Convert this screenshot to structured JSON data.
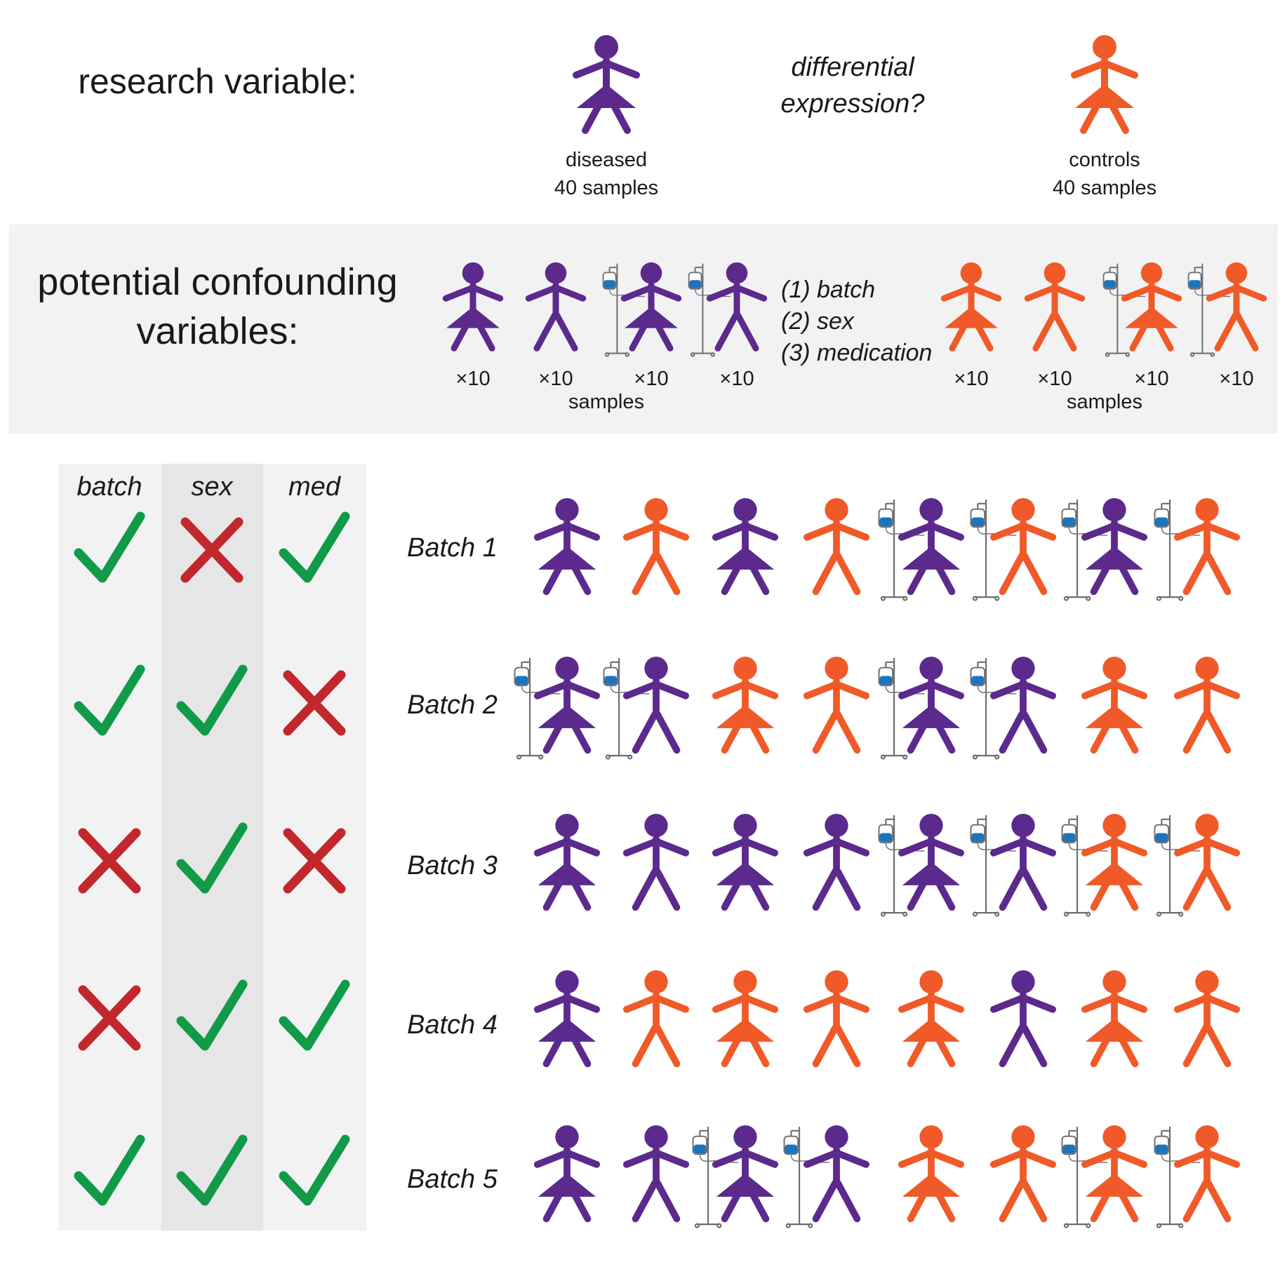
{
  "colors": {
    "diseased": "#5b2a8c",
    "control": "#f05a28",
    "check": "#119a48",
    "cross": "#c1272d",
    "iv_fluid": "#1c75bc",
    "iv_stand": "#6d6e71",
    "band_bg": "#f2f2f2",
    "col_bg": "#f2f2f2",
    "col_mid_bg": "#e6e6e6"
  },
  "research": {
    "title": "research variable:",
    "question_line1": "differential",
    "question_line2": "expression?",
    "diseased_label": "diseased",
    "diseased_count": "40 samples",
    "controls_label": "controls",
    "controls_count": "40 samples"
  },
  "confounding": {
    "title_line1": "potential confounding",
    "title_line2": "variables:",
    "vars": [
      "(1) batch",
      "(2) sex",
      "(3) medication"
    ],
    "mult_label": "×10",
    "samples_label": "samples",
    "diseased_groups": [
      {
        "sex": "F",
        "med": false
      },
      {
        "sex": "M",
        "med": false
      },
      {
        "sex": "F",
        "med": true
      },
      {
        "sex": "M",
        "med": true
      }
    ],
    "control_groups": [
      {
        "sex": "F",
        "med": false
      },
      {
        "sex": "M",
        "med": false
      },
      {
        "sex": "F",
        "med": true
      },
      {
        "sex": "M",
        "med": true
      }
    ]
  },
  "table": {
    "headers": [
      "batch",
      "sex",
      "med"
    ],
    "icon_names": {
      "check": "check-icon",
      "cross": "cross-icon"
    },
    "rows": [
      {
        "batch": "Batch 1",
        "balanced": [
          true,
          false,
          true
        ],
        "people": [
          {
            "g": "d",
            "sex": "F",
            "med": false
          },
          {
            "g": "c",
            "sex": "M",
            "med": false
          },
          {
            "g": "d",
            "sex": "F",
            "med": false
          },
          {
            "g": "c",
            "sex": "M",
            "med": false
          },
          {
            "g": "d",
            "sex": "F",
            "med": true
          },
          {
            "g": "c",
            "sex": "M",
            "med": true
          },
          {
            "g": "d",
            "sex": "F",
            "med": true
          },
          {
            "g": "c",
            "sex": "M",
            "med": true
          }
        ]
      },
      {
        "batch": "Batch 2",
        "balanced": [
          true,
          true,
          false
        ],
        "people": [
          {
            "g": "d",
            "sex": "F",
            "med": true
          },
          {
            "g": "d",
            "sex": "M",
            "med": true
          },
          {
            "g": "c",
            "sex": "F",
            "med": false
          },
          {
            "g": "c",
            "sex": "M",
            "med": false
          },
          {
            "g": "d",
            "sex": "F",
            "med": true
          },
          {
            "g": "d",
            "sex": "M",
            "med": true
          },
          {
            "g": "c",
            "sex": "F",
            "med": false
          },
          {
            "g": "c",
            "sex": "M",
            "med": false
          }
        ]
      },
      {
        "batch": "Batch 3",
        "balanced": [
          false,
          true,
          false
        ],
        "people": [
          {
            "g": "d",
            "sex": "F",
            "med": false
          },
          {
            "g": "d",
            "sex": "M",
            "med": false
          },
          {
            "g": "d",
            "sex": "F",
            "med": false
          },
          {
            "g": "d",
            "sex": "M",
            "med": false
          },
          {
            "g": "d",
            "sex": "F",
            "med": true
          },
          {
            "g": "d",
            "sex": "M",
            "med": true
          },
          {
            "g": "c",
            "sex": "F",
            "med": true
          },
          {
            "g": "c",
            "sex": "M",
            "med": true
          }
        ]
      },
      {
        "batch": "Batch 4",
        "balanced": [
          false,
          true,
          true
        ],
        "people": [
          {
            "g": "d",
            "sex": "F",
            "med": false
          },
          {
            "g": "c",
            "sex": "M",
            "med": false
          },
          {
            "g": "c",
            "sex": "F",
            "med": false
          },
          {
            "g": "c",
            "sex": "M",
            "med": false
          },
          {
            "g": "c",
            "sex": "F",
            "med": false
          },
          {
            "g": "d",
            "sex": "M",
            "med": false
          },
          {
            "g": "c",
            "sex": "F",
            "med": false
          },
          {
            "g": "c",
            "sex": "M",
            "med": false
          }
        ]
      },
      {
        "batch": "Batch 5",
        "balanced": [
          true,
          true,
          true
        ],
        "people": [
          {
            "g": "d",
            "sex": "F",
            "med": false
          },
          {
            "g": "d",
            "sex": "M",
            "med": false
          },
          {
            "g": "d",
            "sex": "F",
            "med": true
          },
          {
            "g": "d",
            "sex": "M",
            "med": true
          },
          {
            "g": "c",
            "sex": "F",
            "med": false
          },
          {
            "g": "c",
            "sex": "M",
            "med": false
          },
          {
            "g": "c",
            "sex": "F",
            "med": true
          },
          {
            "g": "c",
            "sex": "M",
            "med": true
          }
        ]
      }
    ]
  }
}
